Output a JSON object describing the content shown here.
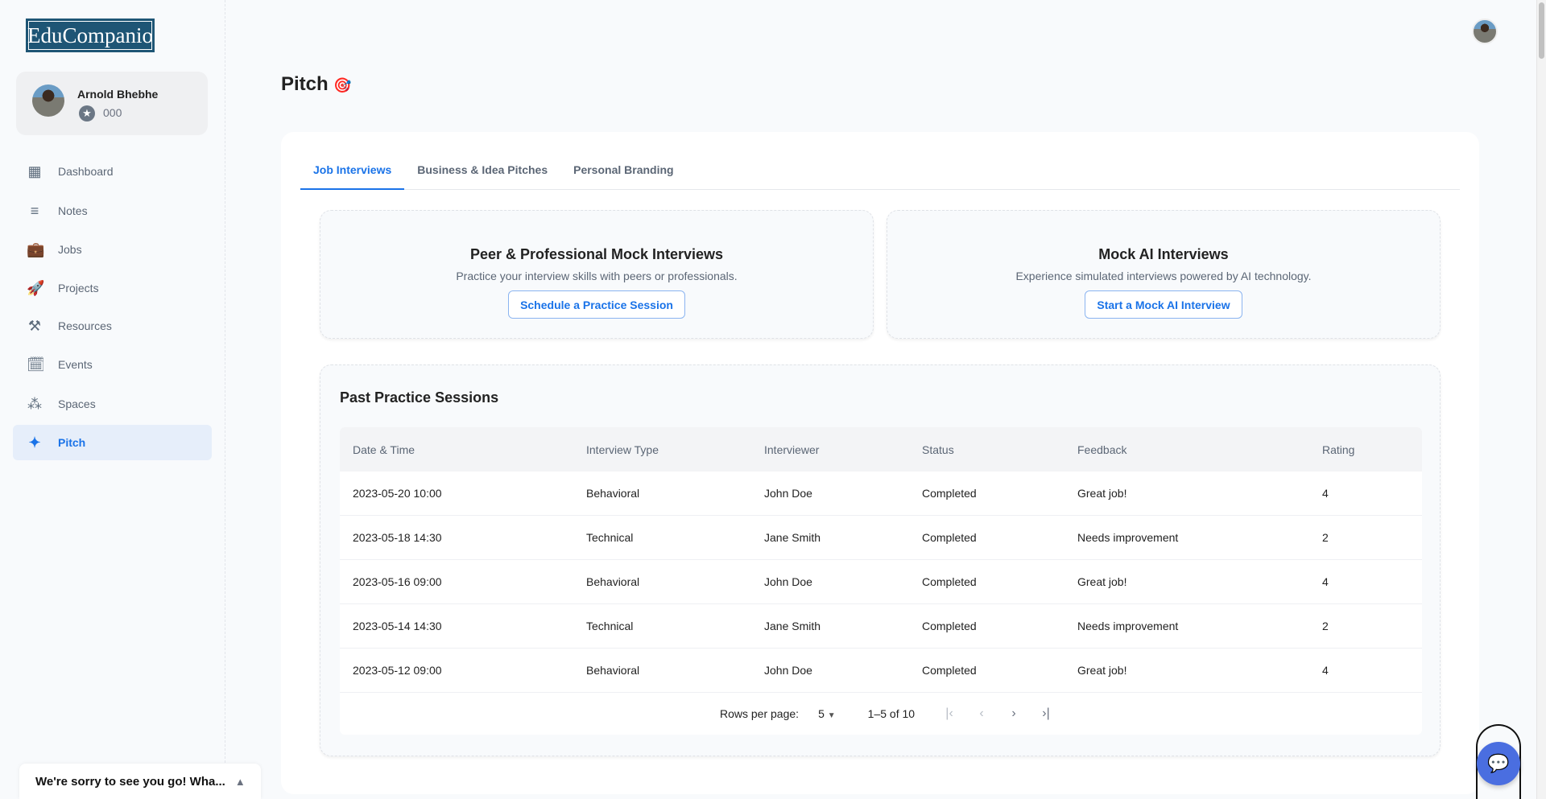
{
  "app": {
    "logo": "EduCompanio"
  },
  "user": {
    "name": "Arnold Bhebhe",
    "points": "000"
  },
  "sidebar": {
    "items": [
      {
        "label": "Dashboard",
        "icon": "dashboard-icon",
        "glyph": "▦"
      },
      {
        "label": "Notes",
        "icon": "notes-icon",
        "glyph": "≡"
      },
      {
        "label": "Jobs",
        "icon": "briefcase-icon",
        "glyph": "💼"
      },
      {
        "label": "Projects",
        "icon": "rocket-icon",
        "glyph": "🚀"
      },
      {
        "label": "Resources",
        "icon": "tools-icon",
        "glyph": "⚒"
      },
      {
        "label": "Events",
        "icon": "calendar-check-icon",
        "glyph": "🗓"
      },
      {
        "label": "Spaces",
        "icon": "workspaces-icon",
        "glyph": "⁂"
      },
      {
        "label": "Pitch",
        "icon": "sparkle-icon",
        "glyph": "✦",
        "active": true
      }
    ]
  },
  "page": {
    "title": "Pitch",
    "title_emoji": "🎯"
  },
  "tabs": [
    {
      "label": "Job Interviews",
      "active": true
    },
    {
      "label": "Business & Idea Pitches"
    },
    {
      "label": "Personal Branding"
    }
  ],
  "options": [
    {
      "title": "Peer & Professional Mock Interviews",
      "desc": "Practice your interview skills with peers or professionals.",
      "button": "Schedule a Practice Session"
    },
    {
      "title": "Mock AI Interviews",
      "desc": "Experience simulated interviews powered by AI technology.",
      "button": "Start a Mock AI Interview"
    }
  ],
  "past": {
    "title": "Past Practice Sessions",
    "columns": [
      "Date & Time",
      "Interview Type",
      "Interviewer",
      "Status",
      "Feedback",
      "Rating"
    ],
    "rows": [
      [
        "2023-05-20 10:00",
        "Behavioral",
        "John Doe",
        "Completed",
        "Great job!",
        "4"
      ],
      [
        "2023-05-18 14:30",
        "Technical",
        "Jane Smith",
        "Completed",
        "Needs improvement",
        "2"
      ],
      [
        "2023-05-16 09:00",
        "Behavioral",
        "John Doe",
        "Completed",
        "Great job!",
        "4"
      ],
      [
        "2023-05-14 14:30",
        "Technical",
        "Jane Smith",
        "Completed",
        "Needs improvement",
        "2"
      ],
      [
        "2023-05-12 09:00",
        "Behavioral",
        "John Doe",
        "Completed",
        "Great job!",
        "4"
      ]
    ],
    "pagination": {
      "rows_label": "Rows per page:",
      "rows_value": "5",
      "range": "1–5 of 10"
    }
  },
  "toast": {
    "text": "We're sorry to see you go! Wha..."
  },
  "colors": {
    "accent": "#1a73e8",
    "logo_bg": "#1e5575",
    "chat_button": "#4a6ee0"
  }
}
